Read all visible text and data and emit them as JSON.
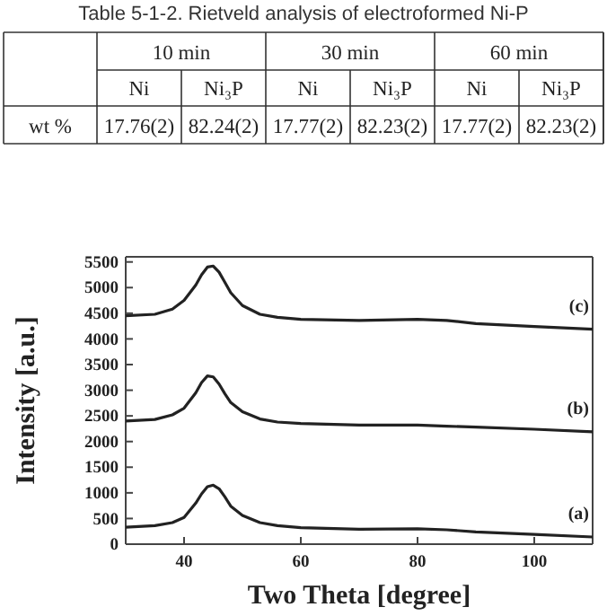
{
  "chart_data": [
    {
      "type": "other",
      "title": "Table 5-1-2. Rietveld analysis of electroformed Ni-P",
      "annotations": [
        "10 min",
        "30 min",
        "60 min",
        "Ni",
        "Ni₃P",
        "Ni",
        "Ni₃P",
        "Ni",
        "Ni₃P",
        "wt %",
        "17.76(2)",
        "82.24(2)",
        "17.77(2)",
        "82.23(2)",
        "17.77(2)",
        "82.23(2)"
      ]
    },
    {
      "type": "line",
      "xlabel": "Two Theta [degree]",
      "ylabel": "Intensity [a.u.]",
      "xlim": [
        30,
        110
      ],
      "ylim": [
        0,
        5600
      ],
      "xticks": [
        40,
        60,
        80,
        100
      ],
      "yticks": [
        0,
        500,
        1000,
        1500,
        2000,
        2500,
        3000,
        3500,
        4000,
        4500,
        5000,
        5500
      ],
      "x": [
        30,
        35,
        38,
        40,
        42,
        43,
        44,
        45,
        46,
        47,
        48,
        50,
        53,
        56,
        60,
        70,
        80,
        85,
        90,
        100,
        110
      ],
      "series": [
        {
          "name": "(a)",
          "color": "#222222",
          "values": [
            330,
            360,
            420,
            520,
            800,
            980,
            1120,
            1150,
            1080,
            920,
            740,
            560,
            420,
            360,
            320,
            290,
            300,
            280,
            240,
            190,
            140
          ]
        },
        {
          "name": "(b)",
          "color": "#222222",
          "values": [
            2400,
            2430,
            2520,
            2650,
            2950,
            3150,
            3280,
            3260,
            3120,
            2930,
            2760,
            2580,
            2440,
            2380,
            2350,
            2320,
            2320,
            2300,
            2280,
            2240,
            2190
          ]
        },
        {
          "name": "(c)",
          "color": "#222222",
          "values": [
            4450,
            4480,
            4580,
            4750,
            5050,
            5250,
            5400,
            5420,
            5300,
            5100,
            4900,
            4650,
            4480,
            4420,
            4380,
            4360,
            4380,
            4360,
            4300,
            4240,
            4190
          ]
        }
      ]
    }
  ]
}
